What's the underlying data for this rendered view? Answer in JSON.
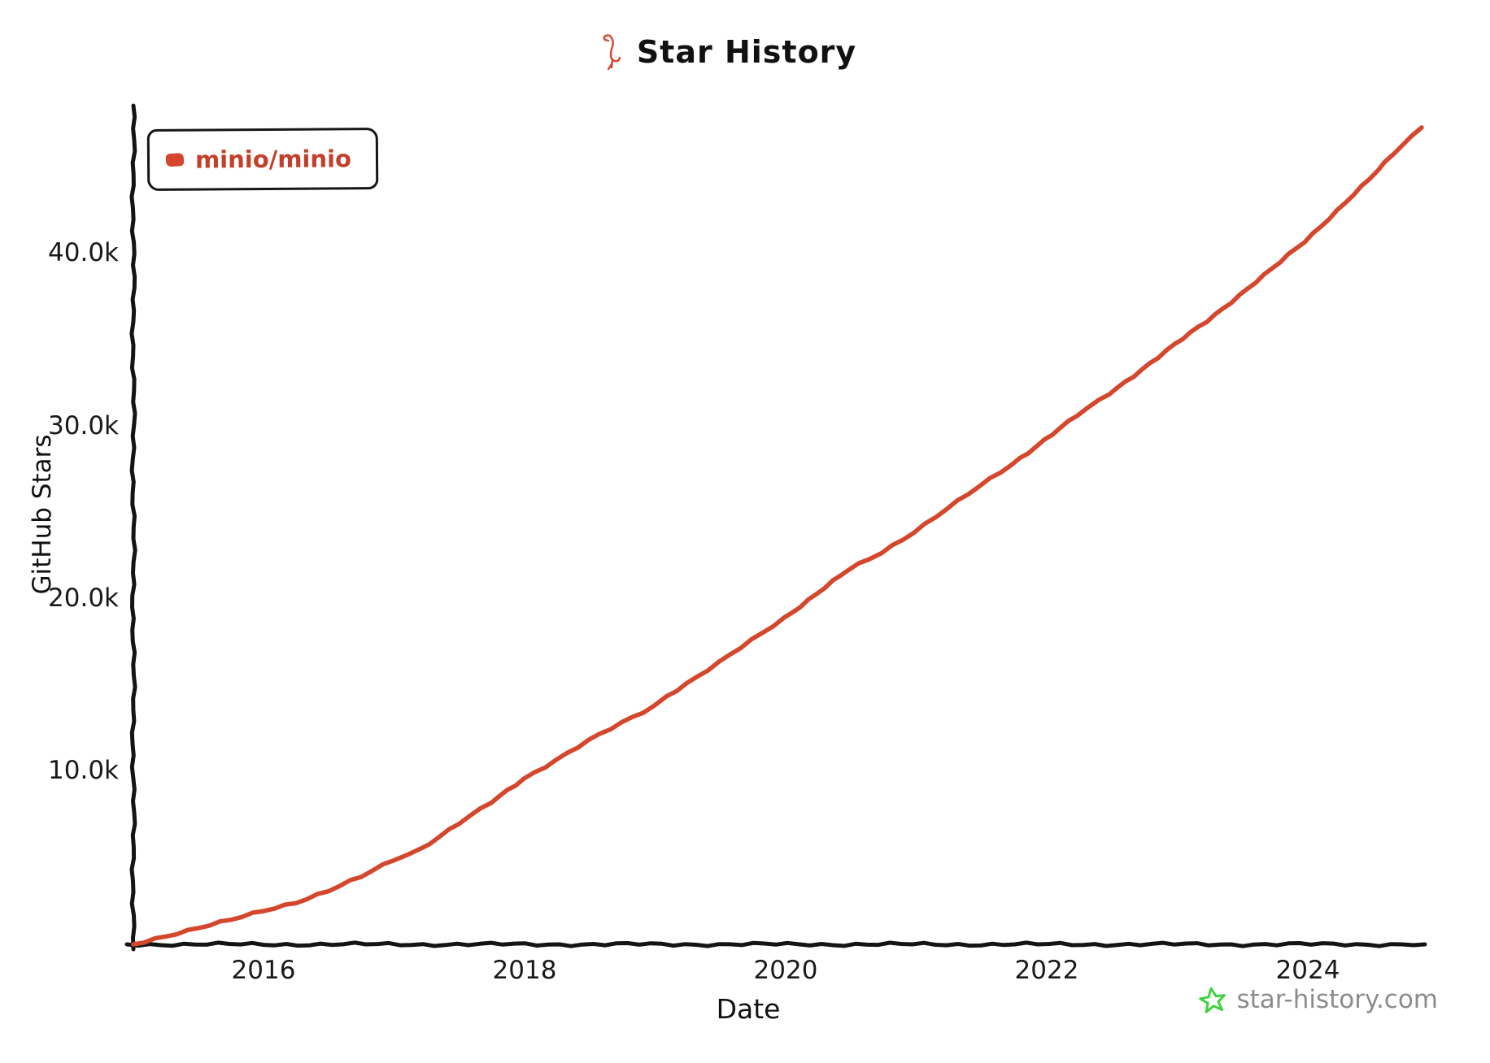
{
  "title": "Star History",
  "watermark_text": "star-history.com",
  "legend": {
    "label": "minio/minio"
  },
  "colors": {
    "series": "#d5472d",
    "axis": "#141414",
    "legend_text": "#c2402a",
    "watermark_text": "#8c8c8c",
    "watermark_star": "#3fd23f"
  },
  "chart_data": {
    "type": "line",
    "title": "Star History",
    "xlabel": "Date",
    "ylabel": "GitHub Stars",
    "xlim": [
      2015.0,
      2024.9
    ],
    "ylim": [
      0,
      48000
    ],
    "grid": false,
    "legend_position": "top-left",
    "x_ticks": [
      2016,
      2018,
      2020,
      2022,
      2024
    ],
    "x_tick_labels": [
      "2016",
      "2018",
      "2020",
      "2022",
      "2024"
    ],
    "y_ticks": [
      10000,
      20000,
      30000,
      40000
    ],
    "y_tick_labels": [
      "10.0k",
      "20.0k",
      "30.0k",
      "40.0k"
    ],
    "series": [
      {
        "name": "minio/minio",
        "color": "#d5472d",
        "x": [
          2015.0,
          2015.25,
          2015.5,
          2015.75,
          2016.0,
          2016.25,
          2016.5,
          2016.75,
          2017.0,
          2017.2,
          2017.5,
          2017.75,
          2018.0,
          2018.25,
          2018.5,
          2018.75,
          2019.0,
          2019.1,
          2019.25,
          2019.5,
          2019.75,
          2020.0,
          2020.25,
          2020.5,
          2020.65,
          2020.75,
          2021.0,
          2021.25,
          2021.5,
          2021.75,
          2022.0,
          2022.25,
          2022.5,
          2022.75,
          2023.0,
          2023.25,
          2023.5,
          2023.75,
          2024.0,
          2024.25,
          2024.5,
          2024.75,
          2024.9
        ],
        "y": [
          0,
          500,
          950,
          1400,
          1950,
          2450,
          3100,
          3900,
          4900,
          5500,
          7000,
          8200,
          9600,
          10700,
          11800,
          12800,
          13800,
          14400,
          15100,
          16300,
          17600,
          18900,
          20300,
          21700,
          22300,
          22700,
          23900,
          25200,
          26500,
          27800,
          29200,
          30600,
          31900,
          33300,
          34700,
          36100,
          37600,
          39100,
          40700,
          42500,
          44300,
          46300,
          47300
        ]
      }
    ]
  }
}
